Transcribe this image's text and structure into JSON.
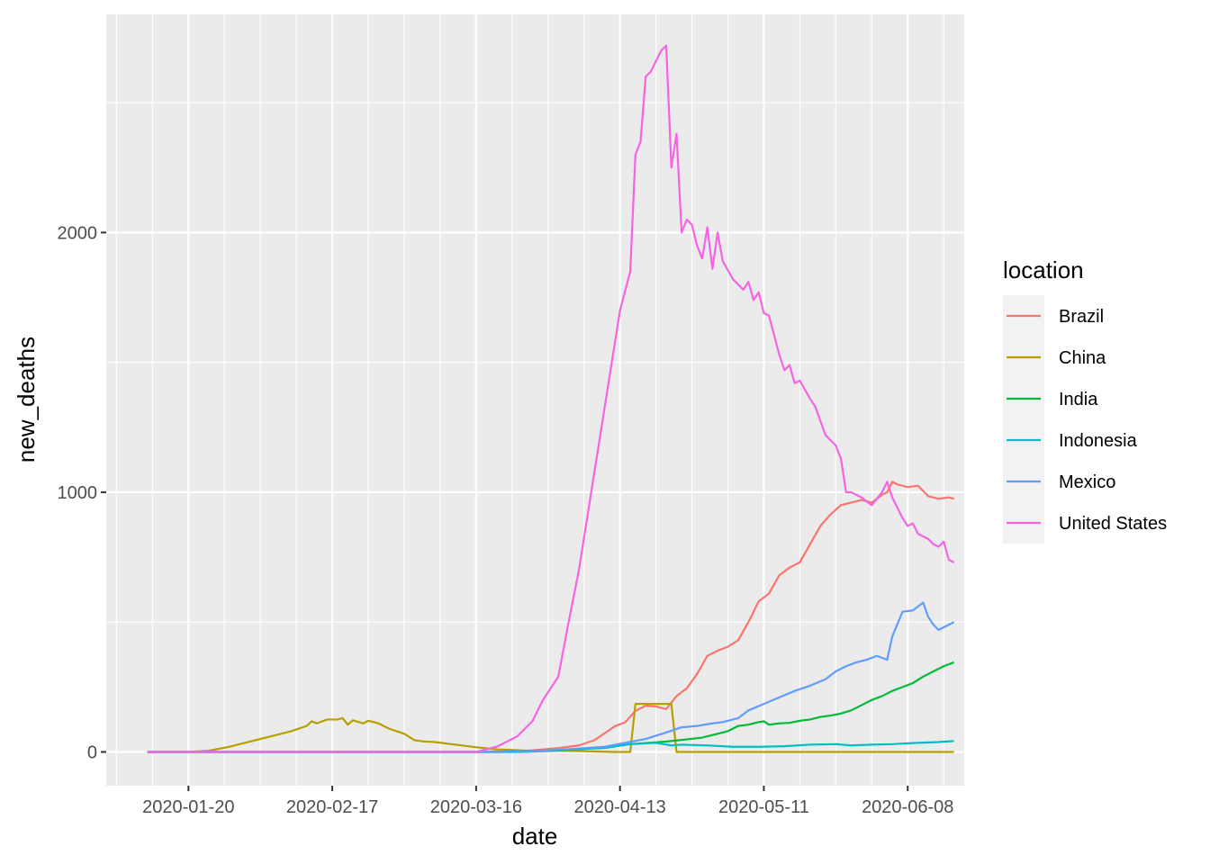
{
  "chart_data": {
    "type": "line",
    "xlabel": "date",
    "ylabel": "new_deaths",
    "x_tick_labels": [
      "2020-01-20",
      "2020-02-17",
      "2020-03-16",
      "2020-04-13",
      "2020-05-11",
      "2020-06-08"
    ],
    "y_tick_labels": [
      "0",
      "1000",
      "2000"
    ],
    "y_ticks": [
      0,
      1000,
      2000
    ],
    "xlim": [
      "2020-01-04",
      "2020-06-19"
    ],
    "ylim": [
      -130,
      2840
    ],
    "panel_background": "#ebebeb",
    "grid": true,
    "legend_placement": "right",
    "legend_title": "location",
    "series": [
      {
        "name": "Brazil",
        "color": "#F8766D",
        "points": [
          [
            "2020-01-12",
            0
          ],
          [
            "2020-03-16",
            0
          ],
          [
            "2020-03-25",
            3
          ],
          [
            "2020-04-01",
            15
          ],
          [
            "2020-04-05",
            25
          ],
          [
            "2020-04-08",
            45
          ],
          [
            "2020-04-12",
            99
          ],
          [
            "2020-04-14",
            114
          ],
          [
            "2020-04-16",
            158
          ],
          [
            "2020-04-18",
            178
          ],
          [
            "2020-04-20",
            175
          ],
          [
            "2020-04-22",
            165
          ],
          [
            "2020-04-24",
            215
          ],
          [
            "2020-04-26",
            245
          ],
          [
            "2020-04-28",
            300
          ],
          [
            "2020-04-30",
            370
          ],
          [
            "2020-05-02",
            390
          ],
          [
            "2020-05-04",
            405
          ],
          [
            "2020-05-06",
            430
          ],
          [
            "2020-05-08",
            500
          ],
          [
            "2020-05-10",
            580
          ],
          [
            "2020-05-12",
            610
          ],
          [
            "2020-05-14",
            680
          ],
          [
            "2020-05-16",
            710
          ],
          [
            "2020-05-18",
            730
          ],
          [
            "2020-05-20",
            800
          ],
          [
            "2020-05-22",
            870
          ],
          [
            "2020-05-24",
            915
          ],
          [
            "2020-05-26",
            950
          ],
          [
            "2020-05-28",
            960
          ],
          [
            "2020-05-30",
            970
          ],
          [
            "2020-06-01",
            960
          ],
          [
            "2020-06-03",
            990
          ],
          [
            "2020-06-04",
            1000
          ],
          [
            "2020-06-05",
            1040
          ],
          [
            "2020-06-06",
            1030
          ],
          [
            "2020-06-08",
            1020
          ],
          [
            "2020-06-10",
            1025
          ],
          [
            "2020-06-12",
            985
          ],
          [
            "2020-06-14",
            975
          ],
          [
            "2020-06-16",
            980
          ],
          [
            "2020-06-17",
            975
          ]
        ]
      },
      {
        "name": "China",
        "color": "#B79F00",
        "points": [
          [
            "2020-01-12",
            0
          ],
          [
            "2020-01-20",
            0
          ],
          [
            "2020-01-24",
            5
          ],
          [
            "2020-01-28",
            20
          ],
          [
            "2020-02-01",
            40
          ],
          [
            "2020-02-05",
            60
          ],
          [
            "2020-02-09",
            80
          ],
          [
            "2020-02-12",
            100
          ],
          [
            "2020-02-13",
            118
          ],
          [
            "2020-02-14",
            110
          ],
          [
            "2020-02-16",
            125
          ],
          [
            "2020-02-18",
            125
          ],
          [
            "2020-02-19",
            130
          ],
          [
            "2020-02-20",
            105
          ],
          [
            "2020-02-21",
            122
          ],
          [
            "2020-02-23",
            110
          ],
          [
            "2020-02-24",
            120
          ],
          [
            "2020-02-26",
            110
          ],
          [
            "2020-02-28",
            90
          ],
          [
            "2020-03-02",
            70
          ],
          [
            "2020-03-04",
            45
          ],
          [
            "2020-03-06",
            40
          ],
          [
            "2020-03-08",
            38
          ],
          [
            "2020-03-12",
            28
          ],
          [
            "2020-03-16",
            18
          ],
          [
            "2020-03-20",
            10
          ],
          [
            "2020-03-26",
            5
          ],
          [
            "2020-04-01",
            5
          ],
          [
            "2020-04-08",
            2
          ],
          [
            "2020-04-12",
            0
          ],
          [
            "2020-04-15",
            0
          ],
          [
            "2020-04-16",
            185
          ],
          [
            "2020-04-23",
            185
          ],
          [
            "2020-04-24",
            0
          ],
          [
            "2020-06-17",
            0
          ]
        ]
      },
      {
        "name": "India",
        "color": "#00BA38",
        "points": [
          [
            "2020-01-12",
            0
          ],
          [
            "2020-03-25",
            0
          ],
          [
            "2020-04-01",
            5
          ],
          [
            "2020-04-08",
            15
          ],
          [
            "2020-04-15",
            30
          ],
          [
            "2020-04-22",
            40
          ],
          [
            "2020-04-29",
            55
          ],
          [
            "2020-05-04",
            80
          ],
          [
            "2020-05-06",
            100
          ],
          [
            "2020-05-08",
            105
          ],
          [
            "2020-05-10",
            115
          ],
          [
            "2020-05-11",
            118
          ],
          [
            "2020-05-12",
            105
          ],
          [
            "2020-05-14",
            110
          ],
          [
            "2020-05-16",
            112
          ],
          [
            "2020-05-18",
            120
          ],
          [
            "2020-05-20",
            125
          ],
          [
            "2020-05-22",
            135
          ],
          [
            "2020-05-24",
            140
          ],
          [
            "2020-05-26",
            148
          ],
          [
            "2020-05-28",
            160
          ],
          [
            "2020-05-30",
            180
          ],
          [
            "2020-06-01",
            200
          ],
          [
            "2020-06-03",
            215
          ],
          [
            "2020-06-05",
            235
          ],
          [
            "2020-06-07",
            250
          ],
          [
            "2020-06-09",
            265
          ],
          [
            "2020-06-11",
            290
          ],
          [
            "2020-06-13",
            310
          ],
          [
            "2020-06-15",
            330
          ],
          [
            "2020-06-17",
            345
          ]
        ]
      },
      {
        "name": "Indonesia",
        "color": "#00BFC4",
        "points": [
          [
            "2020-01-12",
            0
          ],
          [
            "2020-03-20",
            0
          ],
          [
            "2020-04-01",
            8
          ],
          [
            "2020-04-10",
            15
          ],
          [
            "2020-04-15",
            30
          ],
          [
            "2020-04-20",
            35
          ],
          [
            "2020-04-23",
            25
          ],
          [
            "2020-04-25",
            28
          ],
          [
            "2020-04-30",
            25
          ],
          [
            "2020-05-05",
            20
          ],
          [
            "2020-05-10",
            20
          ],
          [
            "2020-05-15",
            22
          ],
          [
            "2020-05-20",
            28
          ],
          [
            "2020-05-25",
            30
          ],
          [
            "2020-05-28",
            25
          ],
          [
            "2020-06-01",
            28
          ],
          [
            "2020-06-05",
            30
          ],
          [
            "2020-06-10",
            35
          ],
          [
            "2020-06-14",
            38
          ],
          [
            "2020-06-17",
            42
          ]
        ]
      },
      {
        "name": "Mexico",
        "color": "#619CFF",
        "points": [
          [
            "2020-01-12",
            0
          ],
          [
            "2020-03-25",
            0
          ],
          [
            "2020-04-01",
            8
          ],
          [
            "2020-04-10",
            20
          ],
          [
            "2020-04-14",
            35
          ],
          [
            "2020-04-18",
            50
          ],
          [
            "2020-04-22",
            75
          ],
          [
            "2020-04-25",
            95
          ],
          [
            "2020-04-28",
            100
          ],
          [
            "2020-05-01",
            110
          ],
          [
            "2020-05-03",
            115
          ],
          [
            "2020-05-06",
            130
          ],
          [
            "2020-05-08",
            160
          ],
          [
            "2020-05-11",
            185
          ],
          [
            "2020-05-14",
            210
          ],
          [
            "2020-05-17",
            235
          ],
          [
            "2020-05-20",
            255
          ],
          [
            "2020-05-23",
            280
          ],
          [
            "2020-05-25",
            310
          ],
          [
            "2020-05-27",
            330
          ],
          [
            "2020-05-29",
            345
          ],
          [
            "2020-05-31",
            355
          ],
          [
            "2020-06-02",
            370
          ],
          [
            "2020-06-04",
            355
          ],
          [
            "2020-06-05",
            445
          ],
          [
            "2020-06-07",
            540
          ],
          [
            "2020-06-09",
            545
          ],
          [
            "2020-06-11",
            575
          ],
          [
            "2020-06-12",
            520
          ],
          [
            "2020-06-13",
            490
          ],
          [
            "2020-06-14",
            470
          ],
          [
            "2020-06-16",
            490
          ],
          [
            "2020-06-17",
            500
          ]
        ]
      },
      {
        "name": "United States",
        "color": "#F564E3",
        "points": [
          [
            "2020-01-12",
            0
          ],
          [
            "2020-03-16",
            0
          ],
          [
            "2020-03-20",
            20
          ],
          [
            "2020-03-24",
            60
          ],
          [
            "2020-03-27",
            120
          ],
          [
            "2020-03-29",
            200
          ],
          [
            "2020-04-01",
            290
          ],
          [
            "2020-04-03",
            500
          ],
          [
            "2020-04-05",
            700
          ],
          [
            "2020-04-07",
            950
          ],
          [
            "2020-04-09",
            1200
          ],
          [
            "2020-04-11",
            1450
          ],
          [
            "2020-04-13",
            1700
          ],
          [
            "2020-04-15",
            1850
          ],
          [
            "2020-04-16",
            2300
          ],
          [
            "2020-04-17",
            2350
          ],
          [
            "2020-04-18",
            2600
          ],
          [
            "2020-04-19",
            2620
          ],
          [
            "2020-04-21",
            2700
          ],
          [
            "2020-04-22",
            2720
          ],
          [
            "2020-04-23",
            2250
          ],
          [
            "2020-04-24",
            2380
          ],
          [
            "2020-04-25",
            2000
          ],
          [
            "2020-04-26",
            2050
          ],
          [
            "2020-04-27",
            2030
          ],
          [
            "2020-04-28",
            1950
          ],
          [
            "2020-04-29",
            1900
          ],
          [
            "2020-04-30",
            2020
          ],
          [
            "2020-05-01",
            1860
          ],
          [
            "2020-05-02",
            2000
          ],
          [
            "2020-05-03",
            1890
          ],
          [
            "2020-05-05",
            1820
          ],
          [
            "2020-05-07",
            1780
          ],
          [
            "2020-05-08",
            1810
          ],
          [
            "2020-05-09",
            1740
          ],
          [
            "2020-05-10",
            1770
          ],
          [
            "2020-05-11",
            1690
          ],
          [
            "2020-05-12",
            1680
          ],
          [
            "2020-05-14",
            1530
          ],
          [
            "2020-05-15",
            1470
          ],
          [
            "2020-05-16",
            1490
          ],
          [
            "2020-05-17",
            1420
          ],
          [
            "2020-05-18",
            1430
          ],
          [
            "2020-05-20",
            1360
          ],
          [
            "2020-05-21",
            1330
          ],
          [
            "2020-05-23",
            1220
          ],
          [
            "2020-05-25",
            1180
          ],
          [
            "2020-05-26",
            1130
          ],
          [
            "2020-05-27",
            1000
          ],
          [
            "2020-05-28",
            1000
          ],
          [
            "2020-05-30",
            980
          ],
          [
            "2020-06-01",
            950
          ],
          [
            "2020-06-03",
            1000
          ],
          [
            "2020-06-04",
            1040
          ],
          [
            "2020-06-05",
            980
          ],
          [
            "2020-06-07",
            900
          ],
          [
            "2020-06-08",
            870
          ],
          [
            "2020-06-09",
            880
          ],
          [
            "2020-06-10",
            840
          ],
          [
            "2020-06-12",
            820
          ],
          [
            "2020-06-13",
            800
          ],
          [
            "2020-06-14",
            790
          ],
          [
            "2020-06-15",
            810
          ],
          [
            "2020-06-16",
            740
          ],
          [
            "2020-06-17",
            730
          ]
        ]
      }
    ]
  }
}
